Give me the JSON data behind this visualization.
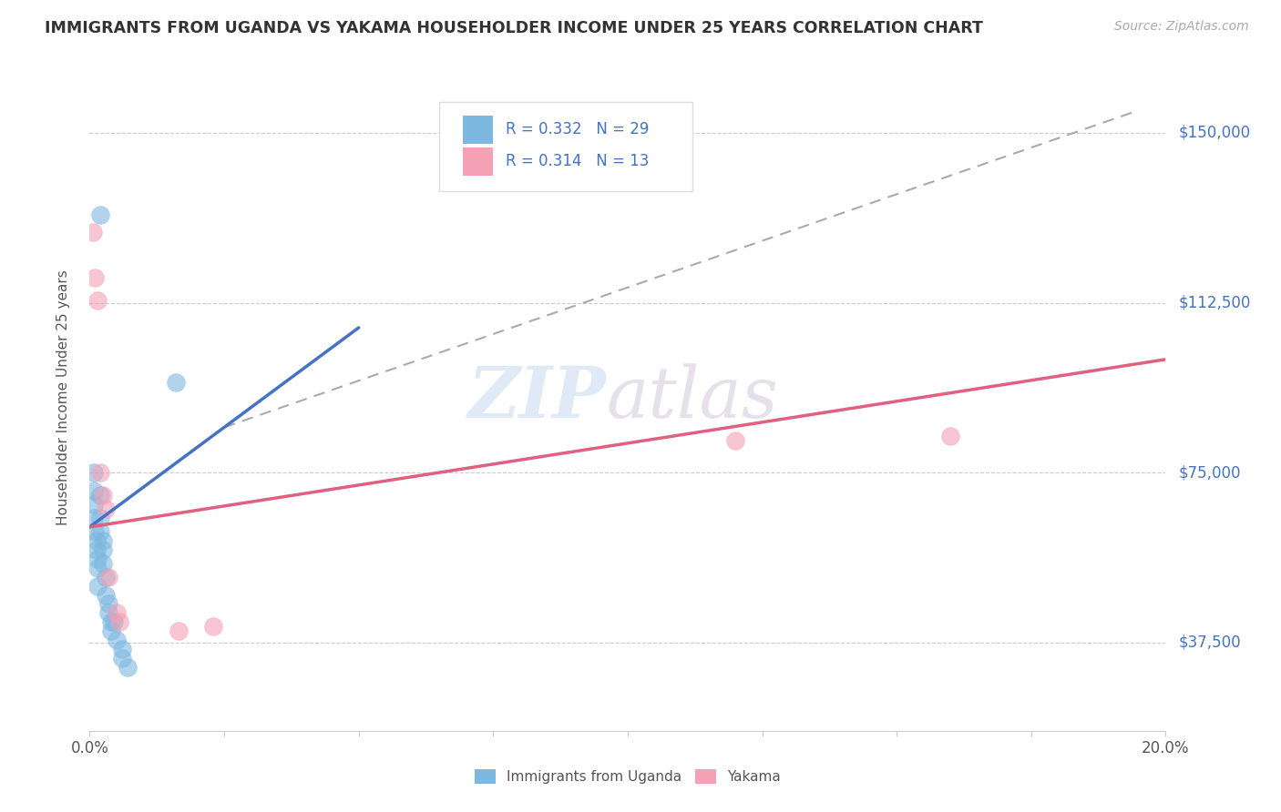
{
  "title": "IMMIGRANTS FROM UGANDA VS YAKAMA HOUSEHOLDER INCOME UNDER 25 YEARS CORRELATION CHART",
  "source": "Source: ZipAtlas.com",
  "ylabel": "Householder Income Under 25 years",
  "xlim": [
    0.0,
    0.2
  ],
  "ylim": [
    18000,
    165000
  ],
  "yticks": [
    37500,
    75000,
    112500,
    150000
  ],
  "ytick_labels": [
    "$37,500",
    "$75,000",
    "$112,500",
    "$150,000"
  ],
  "xticks": [
    0.0,
    0.025,
    0.05,
    0.075,
    0.1,
    0.125,
    0.15,
    0.175,
    0.2
  ],
  "xtick_labels_show": [
    "0.0%",
    "",
    "",
    "",
    "",
    "",
    "",
    "",
    "20.0%"
  ],
  "background_color": "#ffffff",
  "watermark_zip": "ZIP",
  "watermark_atlas": "atlas",
  "uganda_color": "#7db8e0",
  "yakama_color": "#f4a0b5",
  "uganda_scatter": [
    [
      0.0008,
      75000
    ],
    [
      0.0008,
      71000
    ],
    [
      0.0008,
      68000
    ],
    [
      0.0008,
      65000
    ],
    [
      0.001,
      62000
    ],
    [
      0.0012,
      60000
    ],
    [
      0.0012,
      58000
    ],
    [
      0.0015,
      56000
    ],
    [
      0.0015,
      54000
    ],
    [
      0.0015,
      50000
    ],
    [
      0.002,
      70000
    ],
    [
      0.002,
      65000
    ],
    [
      0.002,
      62000
    ],
    [
      0.0025,
      60000
    ],
    [
      0.0025,
      58000
    ],
    [
      0.0025,
      55000
    ],
    [
      0.003,
      52000
    ],
    [
      0.003,
      48000
    ],
    [
      0.0035,
      46000
    ],
    [
      0.0035,
      44000
    ],
    [
      0.004,
      42000
    ],
    [
      0.004,
      40000
    ],
    [
      0.0045,
      42000
    ],
    [
      0.005,
      38000
    ],
    [
      0.006,
      36000
    ],
    [
      0.006,
      34000
    ],
    [
      0.007,
      32000
    ],
    [
      0.016,
      95000
    ],
    [
      0.002,
      132000
    ]
  ],
  "yakama_scatter": [
    [
      0.0006,
      128000
    ],
    [
      0.001,
      118000
    ],
    [
      0.0015,
      113000
    ],
    [
      0.002,
      75000
    ],
    [
      0.0025,
      70000
    ],
    [
      0.003,
      67000
    ],
    [
      0.0035,
      52000
    ],
    [
      0.005,
      44000
    ],
    [
      0.0055,
      42000
    ],
    [
      0.0165,
      40000
    ],
    [
      0.023,
      41000
    ],
    [
      0.12,
      82000
    ],
    [
      0.16,
      83000
    ]
  ],
  "uganda_line_x": [
    0.0,
    0.05
  ],
  "uganda_line_y": [
    63000,
    107000
  ],
  "yakama_line_x": [
    0.0,
    0.2
  ],
  "yakama_line_y": [
    63000,
    100000
  ],
  "ref_line_x": [
    0.025,
    0.195
  ],
  "ref_line_y": [
    85000,
    155000
  ]
}
